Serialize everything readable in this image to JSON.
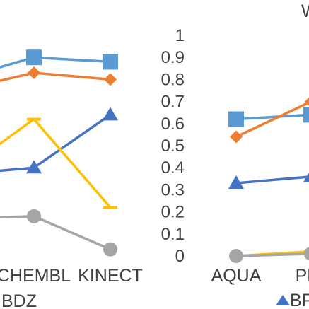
{
  "chart_data": [
    {
      "type": "line",
      "categories": [
        "",
        "CHEMBL",
        "KINECT"
      ],
      "group_label_fragment": "BDZ",
      "ylim": [
        0,
        1
      ],
      "series": [
        {
          "values": [
            0.8,
            0.9,
            0.88
          ],
          "color": "#5B9BD5",
          "marker": "square"
        },
        {
          "values": [
            0.75,
            0.83,
            0.8
          ],
          "color": "#ED7D31",
          "marker": "diamond"
        },
        {
          "values": [
            0.37,
            0.4,
            0.64
          ],
          "color": "#4472C4",
          "marker": "triangle"
        },
        {
          "values": [
            0.37,
            0.62,
            0.22
          ],
          "color": "#FFC000",
          "marker": "dash"
        },
        {
          "values": [
            0.17,
            0.18,
            0.03
          ],
          "color": "#A5A5A5",
          "marker": "circle"
        }
      ]
    },
    {
      "type": "line",
      "categories": [
        "AQUA",
        "PH"
      ],
      "title_fragment": "W",
      "legend_fragment": "BP",
      "ylim": [
        0,
        1
      ],
      "yticks": [
        "0",
        "0.1",
        "0.2",
        "0.3",
        "0.4",
        "0.5",
        "0.6",
        "0.7",
        "0.8",
        "0.9",
        "1"
      ],
      "series": [
        {
          "values": [
            0.62,
            0.64
          ],
          "color": "#5B9BD5",
          "marker": "square"
        },
        {
          "values": [
            0.54,
            0.7
          ],
          "color": "#ED7D31",
          "marker": "diamond"
        },
        {
          "values": [
            0.33,
            0.36
          ],
          "color": "#4472C4",
          "marker": "triangle"
        },
        {
          "values": [
            0.0,
            0.02
          ],
          "color": "#FFC000",
          "marker": "dash"
        },
        {
          "values": [
            0.0,
            0.01
          ],
          "color": "#A5A5A5",
          "marker": "circle"
        }
      ]
    }
  ]
}
